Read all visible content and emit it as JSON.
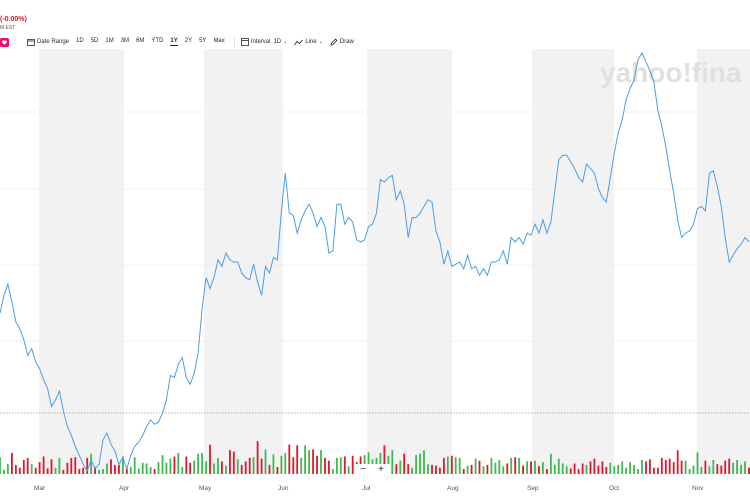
{
  "header": {
    "change_pct": "(-0.00%)",
    "timezone": "M EST"
  },
  "toolbar": {
    "date_range_label": "Date Range",
    "ranges": [
      "1D",
      "5D",
      "1M",
      "3M",
      "6M",
      "YTD",
      "1Y",
      "2Y",
      "5Y",
      "Max"
    ],
    "active_range": "1Y",
    "interval_label": "Interval",
    "interval_value": "1D",
    "line_label": "Line",
    "draw_label": "Draw"
  },
  "watermark": "yahoo!fina",
  "zoom": {
    "minus": "−",
    "plus": "+"
  },
  "colors": {
    "line": "#4a9ee8",
    "up": "#3fb950",
    "down": "#e0162b",
    "band": "#f2f2f2",
    "accent": "#ff0066"
  },
  "chart_data": {
    "type": "line",
    "x_labels": [
      "Mar",
      "Apr",
      "May",
      "Jun",
      "Jul",
      "Aug",
      "Sep",
      "Oct",
      "Nov"
    ],
    "grid": true,
    "price": [
      0.71,
      0.79,
      0.84,
      0.76,
      0.67,
      0.64,
      0.59,
      0.52,
      0.55,
      0.49,
      0.46,
      0.41,
      0.37,
      0.29,
      0.32,
      0.36,
      0.27,
      0.2,
      0.16,
      0.11,
      0.07,
      0.03,
      0.0,
      0.05,
      0.01,
      0.03,
      0.14,
      0.17,
      0.12,
      0.09,
      0.03,
      0.06,
      0.01,
      0.07,
      0.11,
      0.13,
      0.16,
      0.2,
      0.23,
      0.21,
      0.22,
      0.26,
      0.32,
      0.43,
      0.42,
      0.48,
      0.51,
      0.42,
      0.39,
      0.44,
      0.53,
      0.73,
      0.87,
      0.82,
      0.87,
      0.95,
      0.92,
      0.98,
      0.95,
      0.94,
      0.94,
      0.89,
      0.87,
      0.86,
      0.93,
      0.85,
      0.79,
      0.92,
      0.89,
      0.96,
      0.95,
      1.17,
      1.34,
      1.16,
      1.15,
      1.07,
      1.13,
      1.17,
      1.2,
      1.16,
      1.1,
      1.14,
      1.1,
      0.98,
      0.99,
      1.2,
      1.2,
      1.11,
      1.14,
      1.12,
      1.04,
      1.03,
      1.04,
      1.1,
      1.11,
      1.16,
      1.31,
      1.3,
      1.32,
      1.33,
      1.22,
      1.26,
      1.2,
      1.05,
      1.14,
      1.14,
      1.16,
      1.19,
      1.22,
      1.21,
      1.08,
      1.03,
      0.93,
      0.99,
      0.92,
      0.93,
      0.94,
      0.91,
      0.97,
      0.91,
      0.92,
      0.88,
      0.91,
      0.88,
      0.94,
      0.94,
      0.95,
      0.99,
      0.93,
      1.05,
      1.03,
      1.05,
      1.02,
      1.07,
      1.06,
      1.11,
      1.07,
      1.13,
      1.07,
      1.12,
      1.26,
      1.4,
      1.42,
      1.42,
      1.39,
      1.36,
      1.32,
      1.3,
      1.38,
      1.36,
      1.34,
      1.27,
      1.23,
      1.21,
      1.32,
      1.43,
      1.52,
      1.58,
      1.67,
      1.72,
      1.76,
      1.85,
      1.88,
      1.84,
      1.8,
      1.75,
      1.62,
      1.55,
      1.46,
      1.35,
      1.25,
      1.13,
      1.05,
      1.07,
      1.08,
      1.11,
      1.18,
      1.19,
      1.17,
      1.34,
      1.35,
      1.28,
      1.19,
      1.05,
      0.94,
      0.97,
      1.0,
      1.02,
      1.05,
      1.03
    ],
    "volume": [
      0.24,
      0.06,
      0.14,
      0.3,
      0.13,
      0.09,
      0.2,
      0.23,
      0.14,
      0.09,
      0.17,
      0.25,
      0.08,
      0.21,
      0.09,
      0.23,
      0.06,
      0.16,
      0.23,
      0.24,
      0.07,
      0.09,
      0.23,
      0.29,
      0.1,
      0.06,
      0.07,
      0.15,
      0.21,
      0.13,
      0.13,
      0.25,
      0.08,
      0.1,
      0.24,
      0.08,
      0.16,
      0.15,
      0.1,
      0.07,
      0.17,
      0.27,
      0.16,
      0.22,
      0.25,
      0.3,
      0.1,
      0.25,
      0.16,
      0.19,
      0.29,
      0.3,
      0.18,
      0.42,
      0.15,
      0.23,
      0.18,
      0.12,
      0.34,
      0.32,
      0.21,
      0.13,
      0.18,
      0.23,
      0.24,
      0.47,
      0.22,
      0.35,
      0.13,
      0.28,
      0.1,
      0.26,
      0.3,
      0.42,
      0.24,
      0.41,
      0.23,
      0.41,
      0.34,
      0.35,
      0.26,
      0.34,
      0.23,
      0.19,
      0.07,
      0.23,
      0.24,
      0.25,
      0.11,
      0.26,
      0.17,
      0.25,
      0.27,
      0.31,
      0.21,
      0.23,
      0.3,
      0.41,
      0.26,
      0.34,
      0.14,
      0.19,
      0.29,
      0.14,
      0.09,
      0.27,
      0.29,
      0.34,
      0.14,
      0.13,
      0.12,
      0.09,
      0.23,
      0.25,
      0.26,
      0.24,
      0.23,
      0.07,
      0.12,
      0.13,
      0.22,
      0.19,
      0.11,
      0.13,
      0.23,
      0.16,
      0.2,
      0.11,
      0.15,
      0.23,
      0.24,
      0.23,
      0.12,
      0.18,
      0.18,
      0.19,
      0.11,
      0.17,
      0.07,
      0.29,
      0.13,
      0.22,
      0.15,
      0.11,
      0.08,
      0.15,
      0.07,
      0.15,
      0.13,
      0.18,
      0.22,
      0.12,
      0.18,
      0.1,
      0.16,
      0.11,
      0.13,
      0.18,
      0.09,
      0.17,
      0.13,
      0.07,
      0.2,
      0.18,
      0.21,
      0.09,
      0.09,
      0.23,
      0.2,
      0.22,
      0.17,
      0.34,
      0.19,
      0.19,
      0.07,
      0.12,
      0.31,
      0.1,
      0.19,
      0.11,
      0.2,
      0.14,
      0.12,
      0.19,
      0.22,
      0.16,
      0.2,
      0.13,
      0.18,
      0.09
    ]
  }
}
